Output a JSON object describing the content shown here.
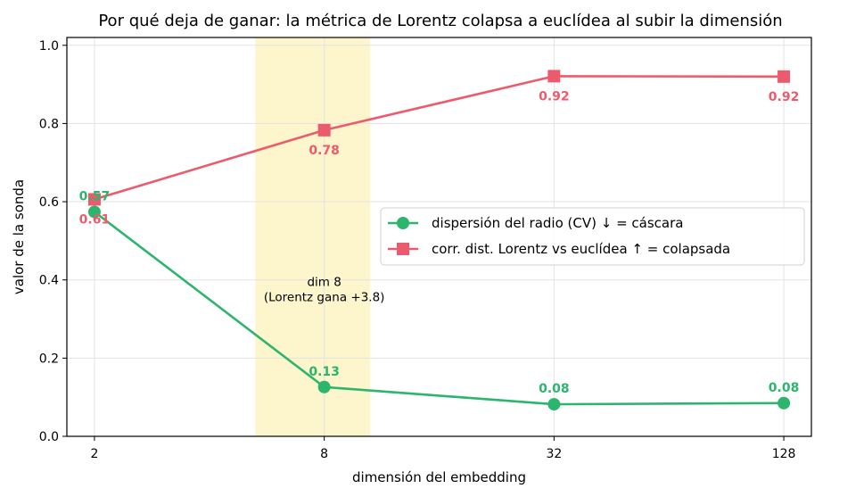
{
  "chart_data": {
    "type": "line",
    "title": "Por qué deja de ganar: la métrica de Lorentz colapsa a euclídea al subir la dimensión",
    "xlabel": "dimensión del embedding",
    "ylabel": "valor de la sonda",
    "categories": [
      "2",
      "8",
      "32",
      "128"
    ],
    "x_scale": "log",
    "ylim": [
      0,
      1.02
    ],
    "yticks": [
      "0.0",
      "0.2",
      "0.4",
      "0.6",
      "0.8",
      "1.0"
    ],
    "grid": true,
    "legend_position": "center-right",
    "highlight_band": {
      "category": "8",
      "color": "#fdf5cc",
      "annotation_lines": [
        "dim 8",
        "(Lorentz gana +3.8)"
      ]
    },
    "series": [
      {
        "name": "dispersión del radio (CV)  ↓ = cáscara",
        "color": "#2cb56c",
        "marker": "circle",
        "values": [
          0.574,
          0.126,
          0.082,
          0.085
        ],
        "data_labels": [
          "0.57",
          "0.13",
          "0.08",
          "0.08"
        ],
        "label_side": "above"
      },
      {
        "name": "corr. dist. Lorentz vs euclídea  ↑ = colapsada",
        "color": "#ec5b6d",
        "marker": "square",
        "values": [
          0.606,
          0.783,
          0.921,
          0.92
        ],
        "data_labels": [
          "0.61",
          "0.78",
          "0.92",
          "0.92"
        ],
        "label_side": "below"
      }
    ]
  }
}
